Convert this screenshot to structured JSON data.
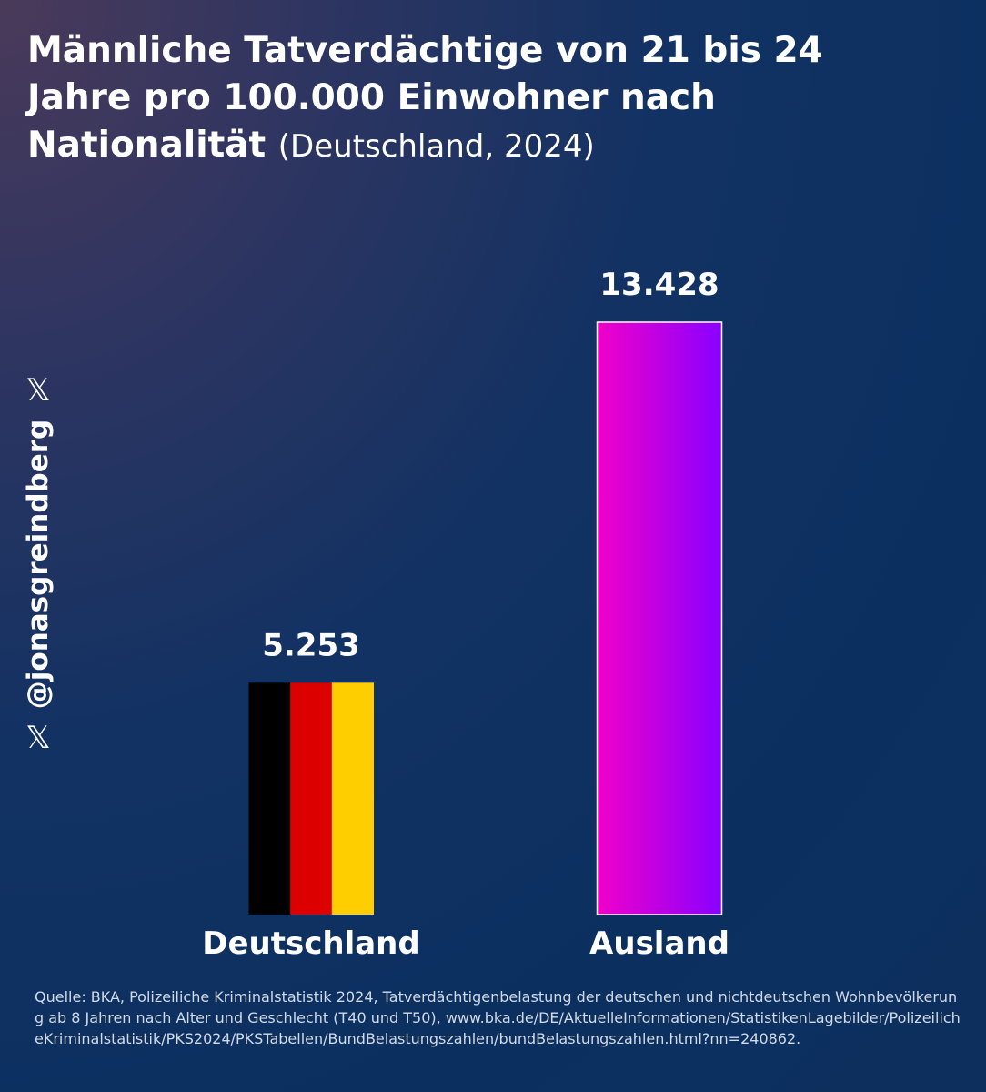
{
  "title": {
    "main": "Männliche Tatverdächtige von 21 bis 24 Jahre pro 100.000 Einwohner nach Nationalität",
    "sub": "(Deutschland, 2024)"
  },
  "handle": {
    "text": "@jonasgreindberg",
    "icon_top": "x-logo-icon",
    "icon_bottom": "x-logo-icon"
  },
  "chart_data": {
    "type": "bar",
    "categories": [
      "Deutschland",
      "Ausland"
    ],
    "values": [
      5253,
      13428
    ],
    "value_labels": [
      "5.253",
      "13.428"
    ],
    "bar_fills": [
      "german-flag",
      "magenta-violet-gradient"
    ],
    "colors": {
      "flag_black": "#000000",
      "flag_red": "#dd0000",
      "flag_gold": "#ffce00",
      "gradient_start": "#f000c8",
      "gradient_end": "#8a00ff"
    },
    "ylim": [
      0,
      13428
    ],
    "grid": false,
    "legend": "none"
  },
  "source": {
    "text": "Quelle: BKA, Polizeiliche Kriminalstatistik 2024, Tatverdächtigenbelastung der deutschen und nichtdeutschen Wohnbevölkerung ab 8 Jahren nach Alter und Geschlecht (T40 und T50), www.bka.de/DE/AktuelleInformationen/StatistikenLagebilder/PolizeilicheKriminalstatistik/PKS2024/PKSTabellen/BundBelastungszahlen/bundBelastungszahlen.html?nn=240862."
  }
}
